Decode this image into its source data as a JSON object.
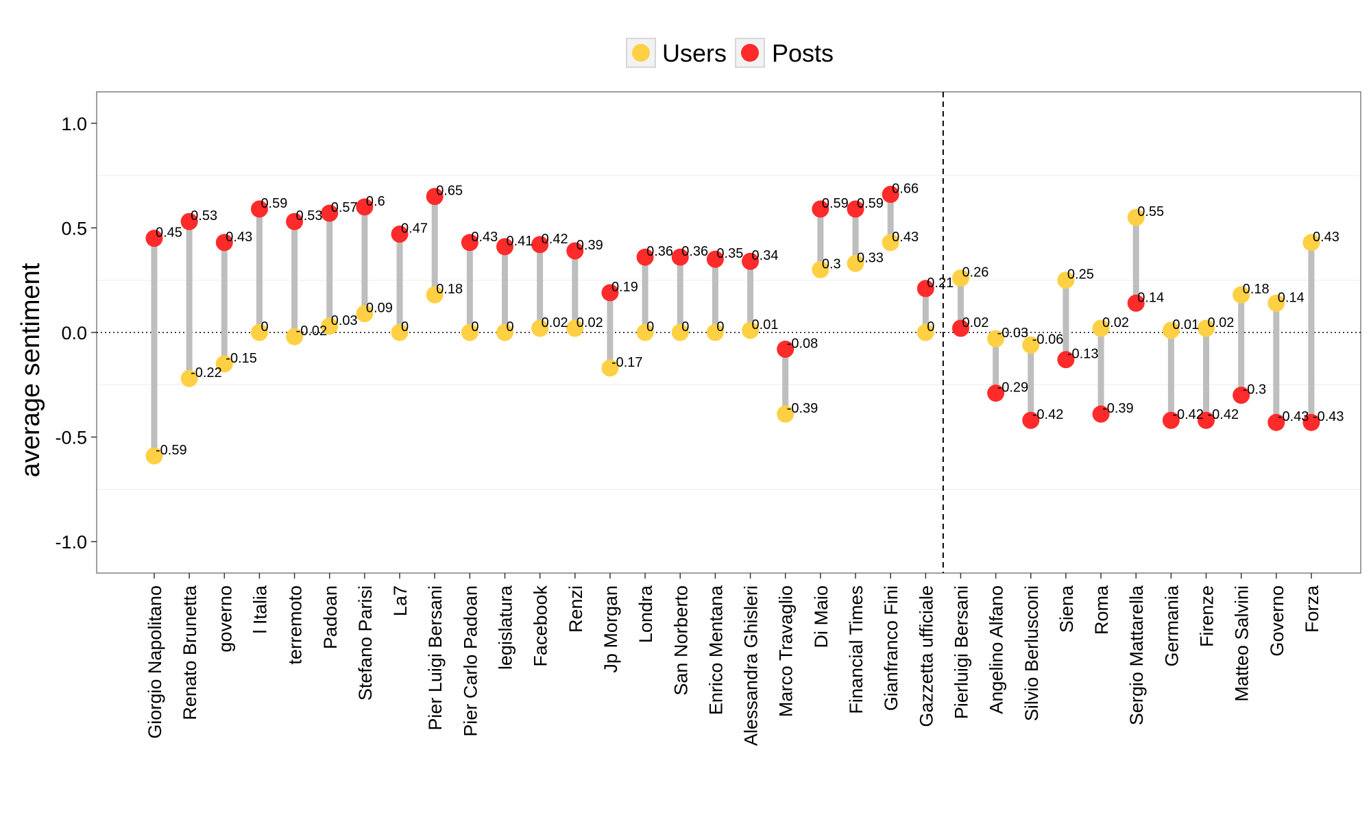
{
  "chart_data": {
    "type": "dumbbell",
    "title": "",
    "xlabel": "",
    "ylabel": "average sentiment",
    "ylim": [
      -1.15,
      1.15
    ],
    "yticks": [
      -1.0,
      -0.5,
      0.0,
      0.5,
      1.0
    ],
    "ytick_labels": [
      "-1.0",
      "-0.5",
      "0.0",
      "0.5",
      "1.0"
    ],
    "reference_lines": {
      "horizontal_dotted_at": 0,
      "vertical_dashed_between": [
        "Gazzetta ufficiale",
        "Pierluigi Bersani"
      ]
    },
    "legend": {
      "placement": "top",
      "entries": [
        {
          "label": "Users",
          "color": "#FFD044"
        },
        {
          "label": "Posts",
          "color": "#FF2A2A"
        }
      ]
    },
    "categories": [
      "Giorgio Napolitano",
      "Renato Brunetta",
      "governo",
      "l Italia",
      "terremoto",
      "Padoan",
      "Stefano Parisi",
      "La7",
      "Pier Luigi Bersani",
      "Pier Carlo Padoan",
      "legislatura",
      "Facebook",
      "Renzi",
      "Jp Morgan",
      "Londra",
      "San Norberto",
      "Enrico Mentana",
      "Alessandra Ghisleri",
      "Marco Travaglio",
      "Di Maio",
      "Financial Times",
      "Gianfranco Fini",
      "Gazzetta ufficiale",
      "Pierluigi Bersani",
      "Angelino Alfano",
      "Silvio Berlusconi",
      "Siena",
      "Roma",
      "Sergio Mattarella",
      "Germania",
      "Firenze",
      "Matteo Salvini",
      "Governo",
      "Forza"
    ],
    "series": [
      {
        "name": "Users",
        "color": "#FFD044",
        "values": [
          -0.59,
          -0.22,
          -0.15,
          0,
          -0.02,
          0.03,
          0.09,
          0,
          0.18,
          0,
          0,
          0.02,
          0.02,
          -0.17,
          0,
          0,
          0,
          0.01,
          -0.39,
          0.3,
          0.33,
          0.43,
          0,
          0.26,
          -0.03,
          -0.06,
          0.25,
          0.02,
          0.55,
          0.01,
          0.02,
          0.18,
          0.14,
          0.43
        ],
        "labels": [
          "-0.59",
          "-0.22",
          "-0.15",
          "0",
          "-0.02",
          "0.03",
          "0.09",
          "0",
          "0.18",
          "0",
          "0",
          "0.02",
          "0.02",
          "-0.17",
          "0",
          "0",
          "0",
          "0.01",
          "-0.39",
          "0.3",
          "0.33",
          "0.43",
          "0",
          "0.26",
          "-0.03",
          "-0.06",
          "0.25",
          "0.02",
          "0.55",
          "0.01",
          "0.02",
          "0.18",
          "0.14",
          "0.43"
        ]
      },
      {
        "name": "Posts",
        "color": "#FF2A2A",
        "values": [
          0.45,
          0.53,
          0.43,
          0.59,
          0.53,
          0.57,
          0.6,
          0.47,
          0.65,
          0.43,
          0.41,
          0.42,
          0.39,
          0.19,
          0.36,
          0.36,
          0.35,
          0.34,
          -0.08,
          0.59,
          0.59,
          0.66,
          0.21,
          0.02,
          -0.29,
          -0.42,
          -0.13,
          -0.39,
          0.14,
          -0.42,
          -0.42,
          -0.3,
          -0.43,
          -0.43
        ],
        "labels": [
          "0.45",
          "0.53",
          "0.43",
          "0.59",
          "0.53",
          "0.57",
          "0.6",
          "0.47",
          "0.65",
          "0.43",
          "0.41",
          "0.42",
          "0.39",
          "0.19",
          "0.36",
          "0.36",
          "0.35",
          "0.34",
          "-0.08",
          "0.59",
          "0.59",
          "0.66",
          "0.21",
          "0.02",
          "-0.29",
          "-0.42",
          "-0.13",
          "-0.39",
          "0.14",
          "-0.42",
          "-0.42",
          "-0.3",
          "-0.43",
          "-0.43"
        ]
      }
    ],
    "colors": {
      "connector": "#BEBEBE",
      "panel_border": "#7F7F7F",
      "minor_grid": "#F2F2F2",
      "reference": "#000000"
    }
  }
}
